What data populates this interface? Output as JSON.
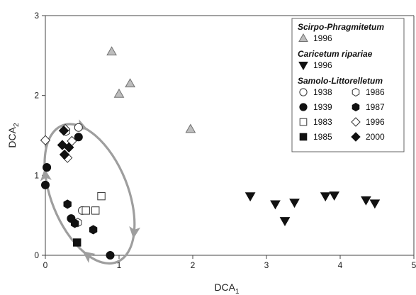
{
  "chart_data": {
    "type": "scatter",
    "xlabel": "DCA",
    "xlabel_sub": "1",
    "ylabel": "DCA",
    "ylabel_sub": "2",
    "xlim": [
      0,
      5
    ],
    "ylim": [
      0,
      3
    ],
    "xticks": [
      0,
      1,
      2,
      3,
      4,
      5
    ],
    "yticks": [
      0,
      1,
      2,
      3
    ],
    "grid": false,
    "legend_position": "top-right",
    "legend_groups": [
      {
        "title": "Scirpo-Phragmitetum",
        "series": [
          "Scirpo-Phragmitetum 1996"
        ]
      },
      {
        "title": "Caricetum ripariae",
        "series": [
          "Caricetum ripariae 1996"
        ]
      },
      {
        "title": "Samolo-Littorelletum",
        "series": [
          "Samolo 1938",
          "Samolo 1986",
          "Samolo 1939",
          "Samolo 1987",
          "Samolo 1983",
          "Samolo 1996",
          "Samolo 1985",
          "Samolo 2000"
        ]
      }
    ],
    "series": [
      {
        "id": "Scirpo-Phragmitetum 1996",
        "label": "1996",
        "marker": "triangle-up",
        "fill": "#bdbdbd",
        "stroke": "#707070",
        "points": [
          [
            0.9,
            2.55
          ],
          [
            1.0,
            2.02
          ],
          [
            1.15,
            2.15
          ],
          [
            1.97,
            1.58
          ]
        ]
      },
      {
        "id": "Caricetum ripariae 1996",
        "label": "1996",
        "marker": "triangle-down",
        "fill": "#111111",
        "stroke": "#111111",
        "points": [
          [
            2.78,
            0.74
          ],
          [
            3.12,
            0.64
          ],
          [
            3.25,
            0.43
          ],
          [
            3.38,
            0.66
          ],
          [
            3.8,
            0.74
          ],
          [
            3.92,
            0.75
          ],
          [
            4.35,
            0.69
          ],
          [
            4.47,
            0.65
          ]
        ]
      },
      {
        "id": "Samolo 1938",
        "label": "1938",
        "marker": "circle",
        "fill": "#ffffff",
        "stroke": "#333333",
        "points": [
          [
            0.45,
            1.6
          ],
          [
            0.5,
            0.56
          ]
        ]
      },
      {
        "id": "Samolo 1986",
        "label": "1986",
        "marker": "hexagon",
        "fill": "#ffffff",
        "stroke": "#333333",
        "points": [
          [
            0.28,
            1.55
          ],
          [
            0.44,
            0.41
          ]
        ]
      },
      {
        "id": "Samolo 1939",
        "label": "1939",
        "marker": "circle",
        "fill": "#111111",
        "stroke": "#111111",
        "points": [
          [
            0.02,
            1.1
          ],
          [
            0.0,
            0.88
          ],
          [
            0.45,
            1.48
          ],
          [
            0.35,
            0.46
          ],
          [
            0.88,
            0.0
          ]
        ]
      },
      {
        "id": "Samolo 1987",
        "label": "1987",
        "marker": "hexagon",
        "fill": "#111111",
        "stroke": "#111111",
        "points": [
          [
            0.3,
            0.64
          ],
          [
            0.4,
            0.4
          ],
          [
            0.65,
            0.32
          ]
        ]
      },
      {
        "id": "Samolo 1983",
        "label": "1983",
        "marker": "square",
        "fill": "#ffffff",
        "stroke": "#333333",
        "points": [
          [
            0.76,
            0.74
          ],
          [
            0.68,
            0.56
          ],
          [
            0.55,
            0.56
          ]
        ]
      },
      {
        "id": "Samolo 1996",
        "label": "1996",
        "marker": "diamond",
        "fill": "#ffffff",
        "stroke": "#333333",
        "points": [
          [
            0.0,
            1.44
          ],
          [
            0.27,
            1.58
          ],
          [
            0.36,
            1.43
          ],
          [
            0.3,
            1.22
          ]
        ]
      },
      {
        "id": "Samolo 1985",
        "label": "1985",
        "marker": "square",
        "fill": "#111111",
        "stroke": "#111111",
        "points": [
          [
            0.43,
            0.16
          ]
        ]
      },
      {
        "id": "Samolo 2000",
        "label": "2000",
        "marker": "diamond",
        "fill": "#111111",
        "stroke": "#111111",
        "points": [
          [
            0.25,
            1.56
          ],
          [
            0.23,
            1.38
          ],
          [
            0.32,
            1.35
          ],
          [
            0.26,
            1.26
          ]
        ]
      }
    ],
    "ellipse": {
      "center": [
        0.6,
        0.77
      ],
      "rx": 0.52,
      "ry": 0.92,
      "rotation_deg": -22,
      "color": "#9e9e9e",
      "direction": "clockwise"
    }
  }
}
